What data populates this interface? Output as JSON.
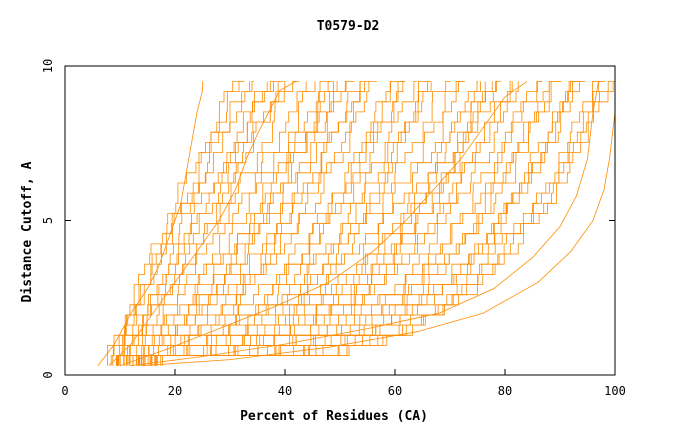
{
  "chart_data": {
    "type": "line",
    "title": "T0579-D2",
    "xlabel": "Percent of Residues (CA)",
    "ylabel": "Distance Cutoff, A",
    "xlim": [
      0,
      100
    ],
    "ylim": [
      0,
      10
    ],
    "xticks": [
      "0",
      "20",
      "40",
      "60",
      "80",
      "100"
    ],
    "yticks": [
      "0",
      "5",
      "10"
    ],
    "grid": false,
    "line_color": "#ff8c00",
    "series_count": 60,
    "representative_series": [
      {
        "x": [
          6,
          9,
          12,
          15,
          17,
          19,
          21,
          22,
          23,
          24,
          25,
          25
        ],
        "y": [
          0.3,
          1.0,
          2.0,
          2.8,
          3.5,
          4.5,
          5.5,
          6.5,
          7.5,
          8.5,
          9.2,
          9.5
        ]
      },
      {
        "x": [
          8,
          12,
          16,
          20,
          24,
          28,
          31,
          33,
          35,
          37,
          39,
          42
        ],
        "y": [
          0.3,
          1.0,
          2.0,
          3.0,
          4.0,
          5.0,
          6.0,
          7.0,
          7.8,
          8.5,
          9.2,
          9.5
        ]
      },
      {
        "x": [
          10,
          18,
          28,
          38,
          48,
          56,
          62,
          67,
          72,
          76,
          80,
          84
        ],
        "y": [
          0.3,
          0.8,
          1.5,
          2.2,
          3.0,
          4.0,
          5.0,
          6.0,
          7.0,
          8.0,
          9.0,
          9.5
        ]
      },
      {
        "x": [
          12,
          25,
          40,
          55,
          68,
          78,
          85,
          90,
          93,
          95,
          96,
          97
        ],
        "y": [
          0.3,
          0.6,
          1.0,
          1.5,
          2.0,
          2.8,
          3.8,
          4.8,
          5.8,
          7.0,
          8.5,
          9.5
        ]
      },
      {
        "x": [
          14,
          30,
          48,
          64,
          76,
          86,
          92,
          96,
          98,
          99,
          100,
          100
        ],
        "y": [
          0.3,
          0.5,
          0.9,
          1.4,
          2.0,
          3.0,
          4.0,
          5.0,
          6.0,
          7.0,
          8.5,
          9.5
        ]
      }
    ]
  }
}
